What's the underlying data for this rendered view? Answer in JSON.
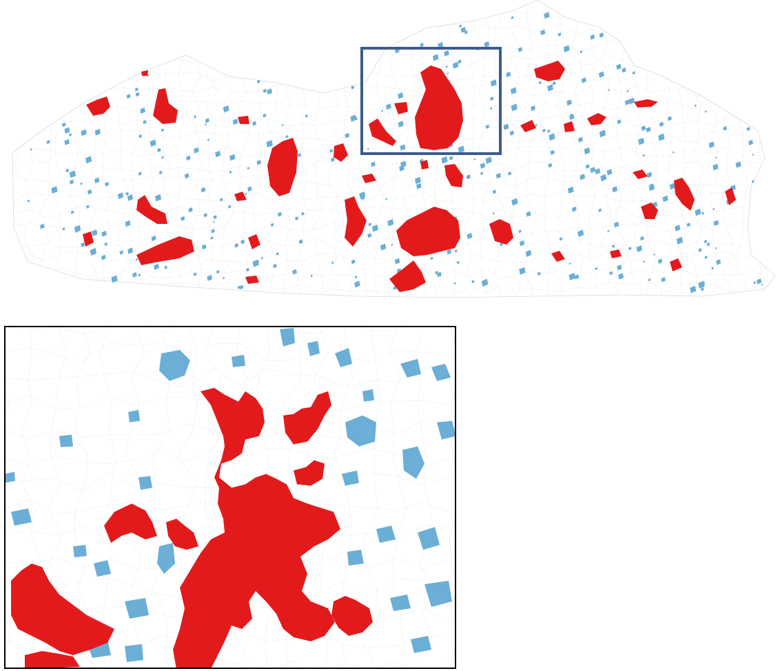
{
  "colors": {
    "urban_cluster": "#e31a1c",
    "suburban_cluster": "#6baed6",
    "boundary": "#d6d9dd",
    "background": "#ffffff",
    "highlight_box": "#3b5b8a",
    "inset_frame": "#000000"
  },
  "overview": {
    "region_name": "",
    "zoom_indicator": "highlight-rectangle"
  },
  "inset": {
    "frame": "black-outline"
  }
}
